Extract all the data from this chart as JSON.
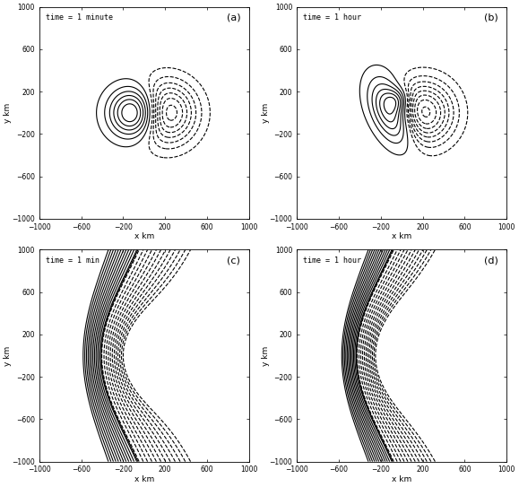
{
  "panels": [
    {
      "label": "(a)",
      "time_text": "time = 1 minute",
      "type": "vorticity",
      "t_hours": 0.0167
    },
    {
      "label": "(b)",
      "time_text": "time = 1 hour",
      "type": "vorticity",
      "t_hours": 1.0
    },
    {
      "label": "(c)",
      "time_text": "time = 1 min",
      "type": "streamfunction",
      "t_hours": 0.0167
    },
    {
      "label": "(d)",
      "time_text": "time = 1 hour",
      "type": "streamfunction",
      "t_hours": 1.0
    }
  ],
  "xlim": [
    -1000,
    1000
  ],
  "ylim": [
    -1000,
    1000
  ],
  "xticks": [
    -1000,
    -600,
    -200,
    200,
    600,
    1000
  ],
  "yticks": [
    -1000,
    -600,
    -200,
    200,
    600,
    1000
  ],
  "xlabel": "x km",
  "ylabel": "y km",
  "background": "#ffffff"
}
